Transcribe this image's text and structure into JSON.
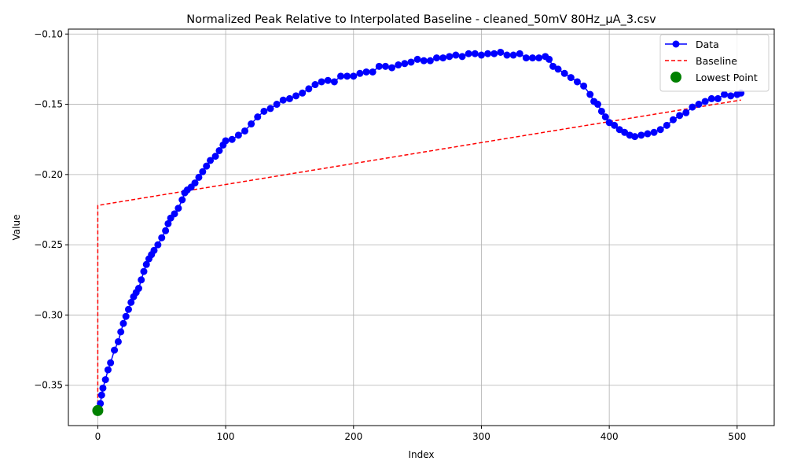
{
  "chart_data": {
    "type": "line",
    "title": "Normalized Peak Relative to Interpolated Baseline - cleaned_50mV 80Hz_µA_3.csv",
    "xlabel": "Index",
    "ylabel": "Value",
    "xlim": [
      -23,
      529
    ],
    "ylim": [
      -0.3787,
      -0.0965
    ],
    "xticks": [
      0,
      100,
      200,
      300,
      400,
      500
    ],
    "yticks": [
      -0.35,
      -0.3,
      -0.25,
      -0.2,
      -0.15,
      -0.1
    ],
    "xtick_labels": [
      "0",
      "100",
      "200",
      "300",
      "400",
      "500"
    ],
    "ytick_labels": [
      "−0.35",
      "−0.30",
      "−0.25",
      "−0.20",
      "−0.15",
      "−0.10"
    ],
    "grid": true,
    "legend": {
      "position": "top-right",
      "entries": [
        "Data",
        "Baseline",
        "Lowest Point"
      ]
    },
    "series": [
      {
        "name": "Data",
        "color": "#0000ff",
        "style": "line-with-markers",
        "points": [
          [
            0,
            -0.368
          ],
          [
            2,
            -0.363
          ],
          [
            3,
            -0.357
          ],
          [
            4,
            -0.352
          ],
          [
            6,
            -0.346
          ],
          [
            8,
            -0.339
          ],
          [
            10,
            -0.334
          ],
          [
            13,
            -0.325
          ],
          [
            16,
            -0.319
          ],
          [
            18,
            -0.312
          ],
          [
            20,
            -0.306
          ],
          [
            22,
            -0.301
          ],
          [
            24,
            -0.296
          ],
          [
            26,
            -0.291
          ],
          [
            28,
            -0.287
          ],
          [
            30,
            -0.284
          ],
          [
            32,
            -0.281
          ],
          [
            34,
            -0.275
          ],
          [
            36,
            -0.269
          ],
          [
            38,
            -0.264
          ],
          [
            40,
            -0.26
          ],
          [
            42,
            -0.257
          ],
          [
            44,
            -0.254
          ],
          [
            47,
            -0.25
          ],
          [
            50,
            -0.245
          ],
          [
            53,
            -0.24
          ],
          [
            55,
            -0.235
          ],
          [
            57,
            -0.231
          ],
          [
            60,
            -0.228
          ],
          [
            63,
            -0.224
          ],
          [
            66,
            -0.218
          ],
          [
            68,
            -0.213
          ],
          [
            70,
            -0.211
          ],
          [
            73,
            -0.209
          ],
          [
            76,
            -0.206
          ],
          [
            79,
            -0.202
          ],
          [
            82,
            -0.198
          ],
          [
            85,
            -0.194
          ],
          [
            88,
            -0.19
          ],
          [
            92,
            -0.187
          ],
          [
            95,
            -0.183
          ],
          [
            98,
            -0.179
          ],
          [
            100,
            -0.176
          ],
          [
            105,
            -0.175
          ],
          [
            110,
            -0.172
          ],
          [
            115,
            -0.169
          ],
          [
            120,
            -0.164
          ],
          [
            125,
            -0.159
          ],
          [
            130,
            -0.155
          ],
          [
            135,
            -0.153
          ],
          [
            140,
            -0.15
          ],
          [
            145,
            -0.147
          ],
          [
            150,
            -0.146
          ],
          [
            155,
            -0.144
          ],
          [
            160,
            -0.142
          ],
          [
            165,
            -0.139
          ],
          [
            170,
            -0.136
          ],
          [
            175,
            -0.134
          ],
          [
            180,
            -0.133
          ],
          [
            185,
            -0.134
          ],
          [
            190,
            -0.13
          ],
          [
            195,
            -0.13
          ],
          [
            200,
            -0.13
          ],
          [
            205,
            -0.128
          ],
          [
            210,
            -0.127
          ],
          [
            215,
            -0.127
          ],
          [
            220,
            -0.123
          ],
          [
            225,
            -0.123
          ],
          [
            230,
            -0.124
          ],
          [
            235,
            -0.122
          ],
          [
            240,
            -0.121
          ],
          [
            245,
            -0.12
          ],
          [
            250,
            -0.118
          ],
          [
            255,
            -0.119
          ],
          [
            260,
            -0.119
          ],
          [
            265,
            -0.117
          ],
          [
            270,
            -0.117
          ],
          [
            275,
            -0.116
          ],
          [
            280,
            -0.115
          ],
          [
            285,
            -0.116
          ],
          [
            290,
            -0.114
          ],
          [
            295,
            -0.114
          ],
          [
            300,
            -0.115
          ],
          [
            305,
            -0.114
          ],
          [
            310,
            -0.114
          ],
          [
            315,
            -0.113
          ],
          [
            320,
            -0.115
          ],
          [
            325,
            -0.115
          ],
          [
            330,
            -0.114
          ],
          [
            335,
            -0.117
          ],
          [
            340,
            -0.117
          ],
          [
            345,
            -0.117
          ],
          [
            350,
            -0.116
          ],
          [
            353,
            -0.118
          ],
          [
            356,
            -0.123
          ],
          [
            360,
            -0.125
          ],
          [
            365,
            -0.128
          ],
          [
            370,
            -0.131
          ],
          [
            375,
            -0.134
          ],
          [
            380,
            -0.137
          ],
          [
            385,
            -0.143
          ],
          [
            388,
            -0.148
          ],
          [
            391,
            -0.15
          ],
          [
            394,
            -0.155
          ],
          [
            397,
            -0.159
          ],
          [
            400,
            -0.163
          ],
          [
            404,
            -0.165
          ],
          [
            408,
            -0.168
          ],
          [
            412,
            -0.17
          ],
          [
            416,
            -0.172
          ],
          [
            420,
            -0.173
          ],
          [
            425,
            -0.172
          ],
          [
            430,
            -0.171
          ],
          [
            435,
            -0.17
          ],
          [
            440,
            -0.168
          ],
          [
            445,
            -0.165
          ],
          [
            450,
            -0.161
          ],
          [
            455,
            -0.158
          ],
          [
            460,
            -0.156
          ],
          [
            465,
            -0.152
          ],
          [
            470,
            -0.15
          ],
          [
            475,
            -0.148
          ],
          [
            480,
            -0.146
          ],
          [
            485,
            -0.146
          ],
          [
            490,
            -0.143
          ],
          [
            495,
            -0.144
          ],
          [
            500,
            -0.143
          ],
          [
            503,
            -0.142
          ]
        ]
      },
      {
        "name": "Baseline",
        "color": "#ff0000",
        "style": "dashed",
        "points": [
          [
            0,
            -0.368
          ],
          [
            0,
            -0.222
          ],
          [
            503,
            -0.147
          ]
        ]
      },
      {
        "name": "Lowest Point",
        "color": "#008000",
        "style": "marker",
        "points": [
          [
            0,
            -0.368
          ]
        ]
      }
    ]
  }
}
